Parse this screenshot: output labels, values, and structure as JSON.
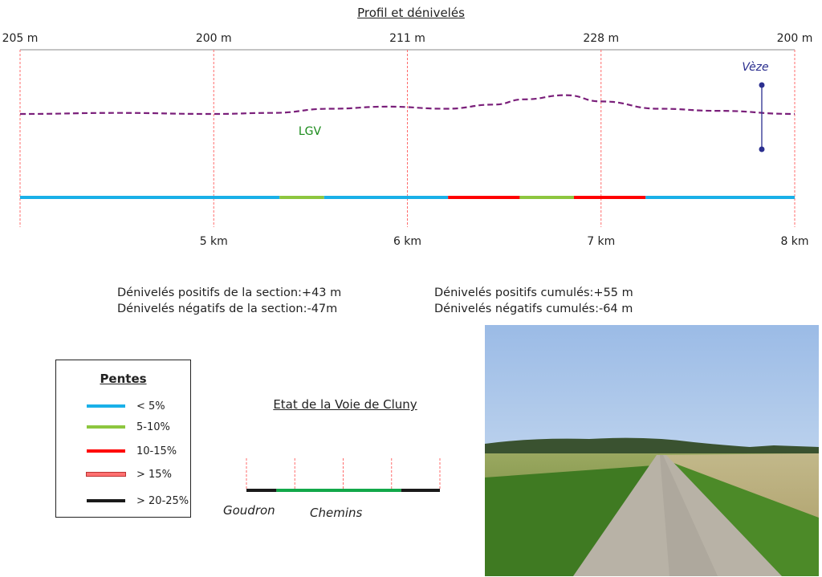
{
  "title": "Profil et dénivelés",
  "chart_data": {
    "type": "line",
    "title": "Profil et dénivelés",
    "xlim": [
      4,
      8
    ],
    "x_ticks": [
      4,
      5,
      6,
      7,
      8
    ],
    "x_tick_labels": [
      "",
      "5 km",
      "6 km",
      "7 km",
      "8 km"
    ],
    "altitude_labels": [
      "205 m",
      "200 m",
      "211 m",
      "228 m",
      "200 m"
    ],
    "profile": [
      [
        4.0,
        205
      ],
      [
        4.5,
        205.5
      ],
      [
        5.0,
        205
      ],
      [
        5.3,
        205.5
      ],
      [
        5.6,
        207.5
      ],
      [
        5.9,
        208.5
      ],
      [
        6.2,
        207.5
      ],
      [
        6.45,
        209.5
      ],
      [
        6.6,
        212
      ],
      [
        6.82,
        214
      ],
      [
        7.0,
        211
      ],
      [
        7.3,
        207.5
      ],
      [
        7.6,
        206.5
      ],
      [
        8.0,
        205
      ]
    ],
    "profile_ylim": [
      180,
      230
    ],
    "annotations": [
      {
        "text": "LGV",
        "km": 5.5,
        "color": "#1a8a1a"
      },
      {
        "text": "Vèze",
        "km": 7.83,
        "color": "#2b2f8f"
      }
    ],
    "slope_segments": [
      {
        "from": 4.0,
        "to": 5.34,
        "class": "< 5%"
      },
      {
        "from": 5.34,
        "to": 5.57,
        "class": "5-10%"
      },
      {
        "from": 5.57,
        "to": 6.21,
        "class": "< 5%"
      },
      {
        "from": 6.21,
        "to": 6.58,
        "class": "10-15%"
      },
      {
        "from": 6.58,
        "to": 6.86,
        "class": "5-10%"
      },
      {
        "from": 6.86,
        "to": 7.23,
        "class": "10-15%"
      },
      {
        "from": 7.23,
        "to": 8.0,
        "class": "< 5%"
      }
    ],
    "grid": true
  },
  "stats": {
    "section_pos": "Dénivelés positifs de la section:+43 m",
    "section_neg": "Dénivelés négatifs de la section:-47m",
    "cumul_pos": "Dénivelés positifs cumulés:+55 m",
    "cumul_neg": "Dénivelés négatifs cumulés:-64 m"
  },
  "legend": {
    "title": "Pentes",
    "items": [
      {
        "label": "< 5%",
        "color": "#1ab0e8"
      },
      {
        "label": "5-10%",
        "color": "#8dc63f"
      },
      {
        "label": "10-15%",
        "color": "#ff0000"
      },
      {
        "label": "> 15%",
        "color": "#ff7070"
      },
      {
        "label": "> 20-25%",
        "color": "#1a1a1a"
      }
    ]
  },
  "etat": {
    "title": "Etat de la Voie de Cluny",
    "segments": [
      {
        "from": 4.0,
        "to": 4.62,
        "type": "Goudron",
        "color": "#1a1a1a"
      },
      {
        "from": 4.62,
        "to": 7.2,
        "type": "Chemins",
        "color": "#12a84a"
      },
      {
        "from": 7.2,
        "to": 8.0,
        "type": "Goudron",
        "color": "#1a1a1a"
      }
    ],
    "label_goudron": "Goudron",
    "label_chemins": "Chemins"
  },
  "photo": {
    "subject": "gravel path between fields"
  }
}
